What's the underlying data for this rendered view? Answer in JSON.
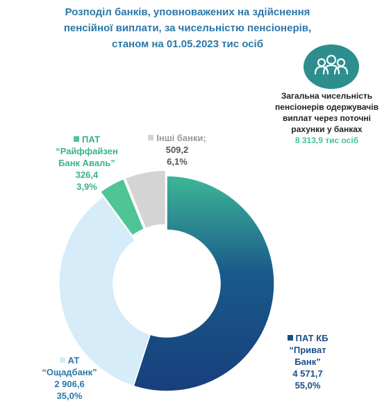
{
  "title_lines": [
    "Розподіл банків, уповноважених на здійснення",
    "пенсійної виплати, за чисельністю пенсіонерів,",
    "станом на 01.05.2023 тис осіб"
  ],
  "total": {
    "lines": [
      "Загальна чисельність",
      "пенсіонерів одержувачів",
      "виплат через поточні",
      "рахунки у банках"
    ],
    "value": "8 313,9 тис осіб"
  },
  "icon": "people-group-icon",
  "chart_data": {
    "type": "donut",
    "title": "Розподіл банків, уповноважених на здійснення пенсійної виплати, за чисельністю пенсіонерів, станом на 01.05.2023 тис осіб",
    "unit": "тис осіб",
    "slices": [
      {
        "name": "ПАТ КБ \"Приват Банк\"",
        "name_lines": [
          "ПАТ КБ",
          "“Приват",
          "Банк”"
        ],
        "value": 4571.7,
        "value_label": "4 571,7",
        "percent": 55.0,
        "percent_label": "55,0%",
        "color": "#1a4f86"
      },
      {
        "name": "АТ \"Ощадбанк\"",
        "name_lines": [
          "АТ",
          "“Ощадбанк”"
        ],
        "value": 2906.6,
        "value_label": "2 906,6",
        "percent": 35.0,
        "percent_label": "35,0%",
        "color": "#d6ecf8"
      },
      {
        "name": "ПАТ \"Райффайзен Банк Аваль\"",
        "name_lines": [
          "ПАТ",
          "“Райффайзен",
          "Банк Аваль”"
        ],
        "value": 326.4,
        "value_label": "326,4",
        "percent": 3.9,
        "percent_label": "3,9%",
        "color": "#4fc494"
      },
      {
        "name": "Інші банки",
        "name_lines": [
          "Інші банки;"
        ],
        "value": 509.2,
        "value_label": "509,2",
        "percent": 6.1,
        "percent_label": "6,1%",
        "color": "#d4d4d4"
      }
    ]
  }
}
